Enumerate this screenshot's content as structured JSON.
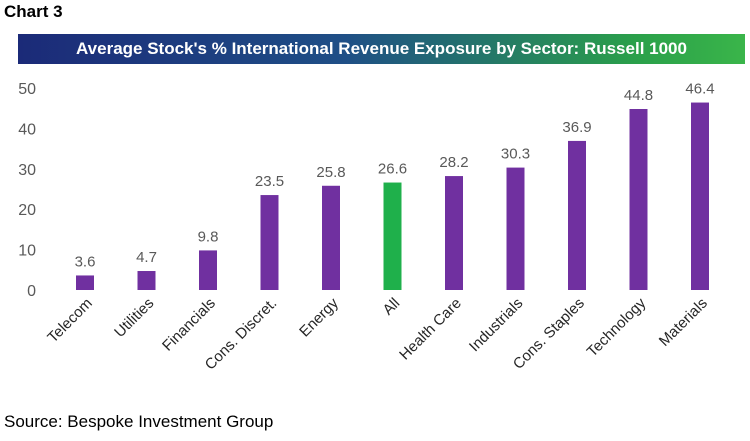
{
  "header": {
    "label": "Chart 3"
  },
  "footer": {
    "source": "Source: Bespoke Investment Group"
  },
  "colors": {
    "bar": "#7030a0",
    "highlight": "#1fb04b",
    "text": "#595959"
  },
  "chart_data": {
    "type": "bar",
    "title": "Average Stock's % International Revenue Exposure by Sector: Russell 1000",
    "xlabel": "",
    "ylabel": "",
    "ylim": [
      0,
      50
    ],
    "yticks": [
      0,
      10,
      20,
      30,
      40,
      50
    ],
    "grid": false,
    "categories": [
      "Telecom",
      "Utilities",
      "Financials",
      "Cons. Discret.",
      "Energy",
      "All",
      "Health Care",
      "Industrials",
      "Cons. Staples",
      "Technology",
      "Materials"
    ],
    "values": [
      3.6,
      4.7,
      9.8,
      23.5,
      25.8,
      26.6,
      28.2,
      30.3,
      36.9,
      44.8,
      46.4
    ],
    "data_labels": [
      "3.6",
      "4.7",
      "9.8",
      "23.5",
      "25.8",
      "26.6",
      "28.2",
      "30.3",
      "36.9",
      "44.8",
      "46.4"
    ],
    "highlight_category": "All"
  }
}
